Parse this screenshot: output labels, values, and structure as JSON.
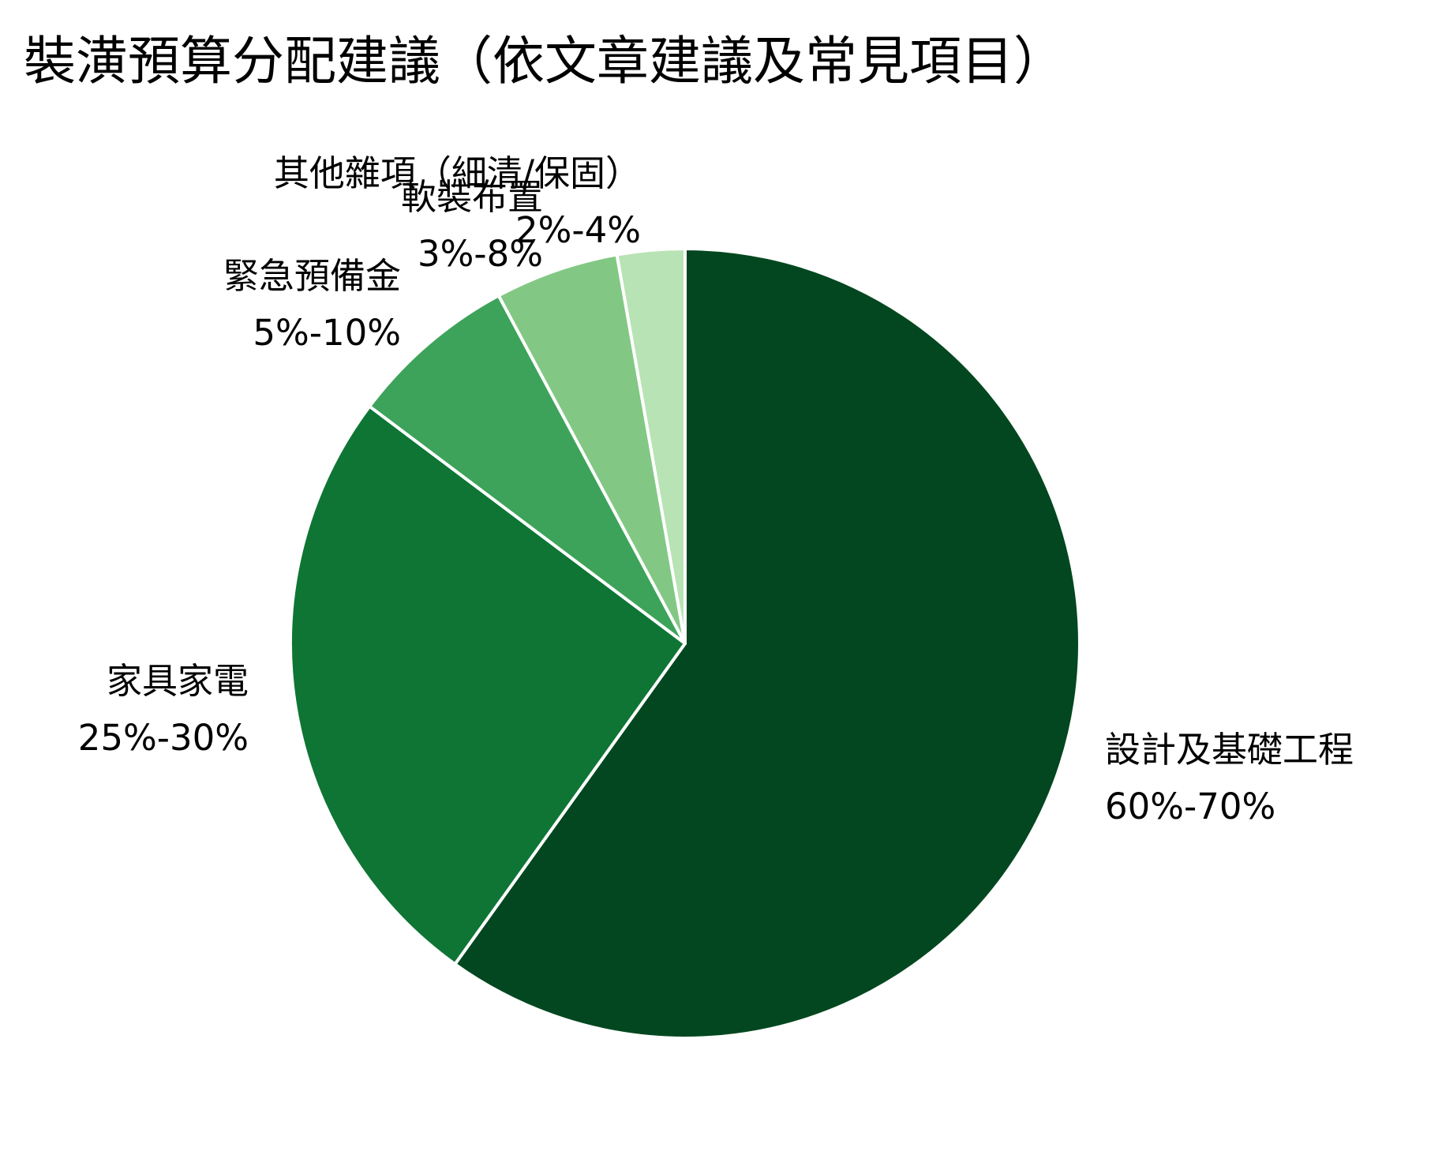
{
  "chart_data": {
    "type": "pie",
    "title": "裝潢預算分配建議（依文章建議及常見項目）",
    "start": "12 o'clock",
    "direction": "clockwise",
    "slices": [
      {
        "label": "設計及基礎工程",
        "range_text": "60%-70%",
        "value": 65,
        "color": "#02471f"
      },
      {
        "label": "家具家電",
        "range_text": "25%-30%",
        "value": 27.5,
        "color": "#0f7535"
      },
      {
        "label": "緊急預備金",
        "range_text": "5%-10%",
        "value": 7.5,
        "color": "#3da35a"
      },
      {
        "label": "軟裝布置",
        "range_text": "3%-8%",
        "value": 5.5,
        "color": "#82c884"
      },
      {
        "label": "其他雜項（細清/保固）",
        "range_text": "2%-4%",
        "value": 3,
        "color": "#b8e3b4"
      }
    ]
  }
}
